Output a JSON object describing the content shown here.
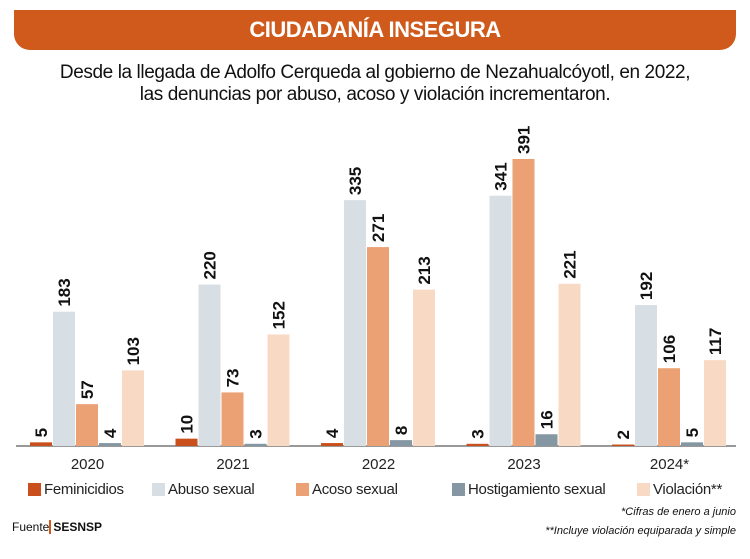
{
  "header": {
    "title": "CIUDADANÍA INSEGURA"
  },
  "subtitle": [
    "Desde la llegada de Adolfo Cerqueda al gobierno de Nezahualcóyotl, en 2022,",
    "las denuncias por abuso, acoso y violación incrementaron."
  ],
  "chart_data": {
    "type": "bar",
    "categories": [
      "2020",
      "2021",
      "2022",
      "2023",
      "2024*"
    ],
    "series": [
      {
        "name": "Feminicidios",
        "color": "#c9501c",
        "values": [
          5,
          10,
          4,
          3,
          2
        ]
      },
      {
        "name": "Abuso sexual",
        "color": "#d8dfe4",
        "values": [
          183,
          220,
          335,
          341,
          192
        ]
      },
      {
        "name": "Acoso sexual",
        "color": "#eba173",
        "values": [
          57,
          73,
          271,
          391,
          106
        ]
      },
      {
        "name": "Hostigamiento sexual",
        "color": "#8497a3",
        "values": [
          4,
          3,
          8,
          16,
          5
        ]
      },
      {
        "name": "Violación**",
        "color": "#f8d9c4",
        "values": [
          103,
          152,
          213,
          221,
          117
        ]
      }
    ],
    "ylim": [
      0,
      391
    ],
    "grid": false,
    "legend": "bottom"
  },
  "footer": {
    "source_label": "Fuente",
    "source": "SESNSP",
    "notes": [
      "*Cifras de enero a junio",
      "**Incluye violación equiparada y simple"
    ]
  }
}
